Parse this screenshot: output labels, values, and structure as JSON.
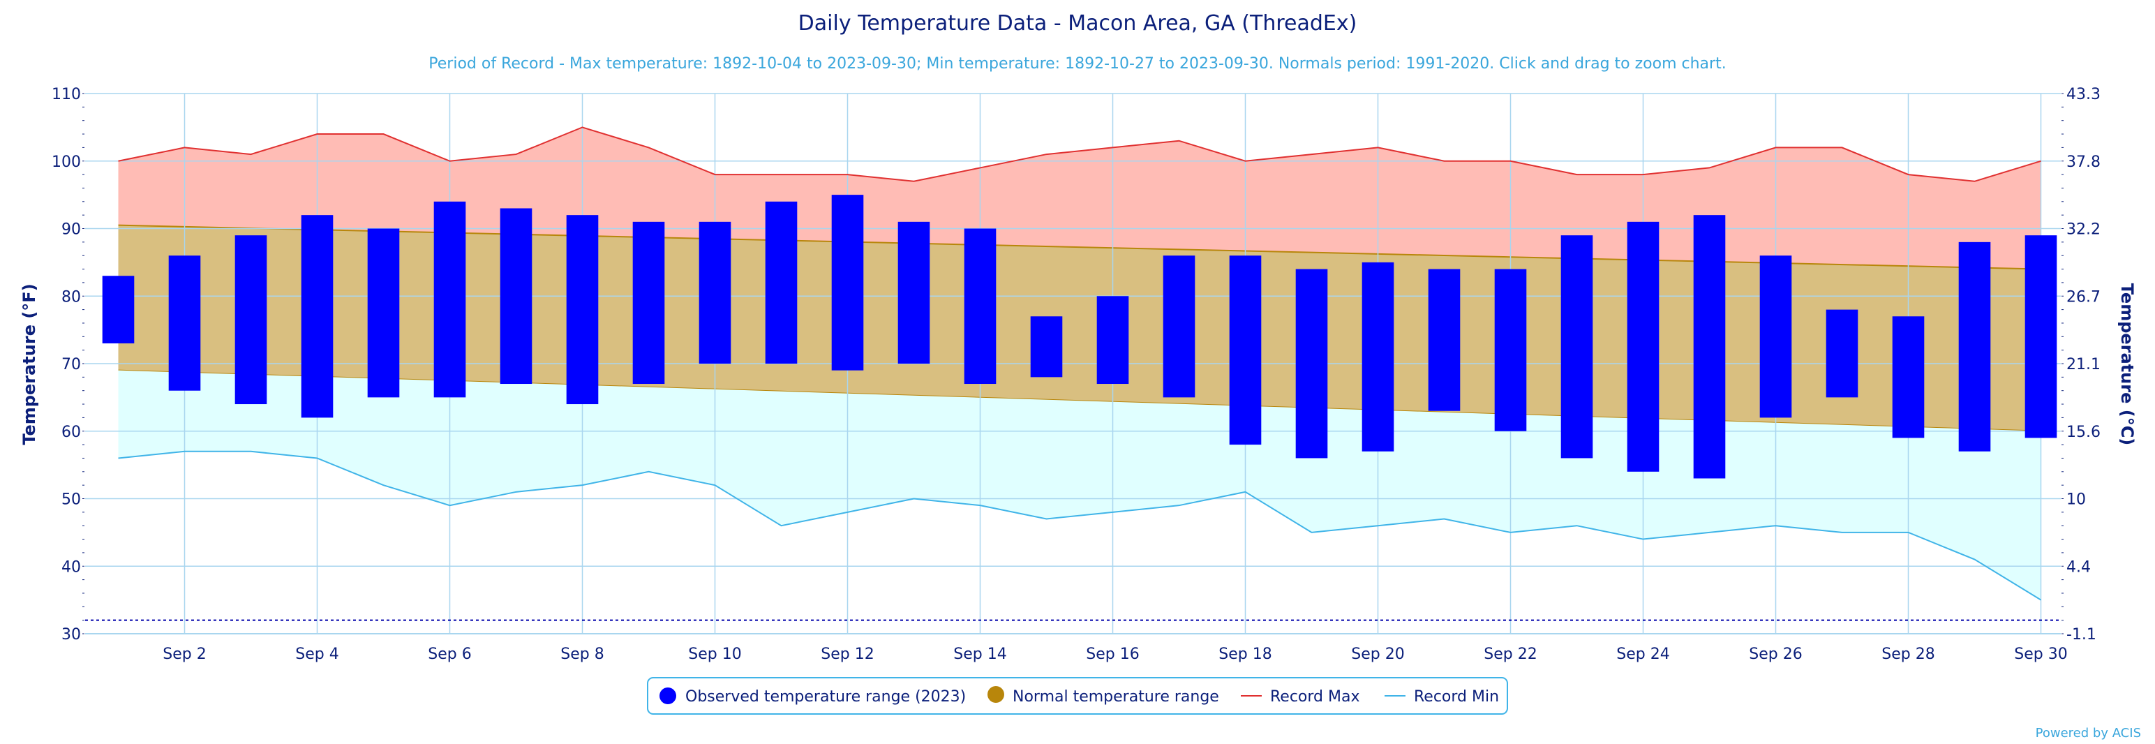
{
  "colors": {
    "observed": "#0000ff",
    "normal_fill": "#d9bf80",
    "normal_edge": "#b8860b",
    "normal_marker": "#b8860b",
    "record_max": "#e03030",
    "record_max_fill": "#ffbcb5",
    "record_min": "#40b4e8",
    "record_min_fill": "#e0ffff",
    "grid": "#a9d6ef",
    "axis_text": "#0b1f7a",
    "subtitle": "#3aa6dc"
  },
  "chart_data": {
    "type": "bar",
    "title": "Daily Temperature Data - Macon Area, GA (ThreadEx)",
    "subtitle": "Period of Record - Max temperature: 1892-10-04 to 2023-09-30; Min temperature: 1892-10-27 to 2023-09-30. Normals period: 1991-2020. Click and drag to zoom chart.",
    "ylabel_left": "Temperature (°F)",
    "ylabel_right": "Temperature (°C)",
    "ylim": [
      30,
      110
    ],
    "yticks_left": [
      "30",
      "40",
      "50",
      "60",
      "70",
      "80",
      "90",
      "100",
      "110"
    ],
    "yticks_right": [
      "-1.1",
      "4.4",
      "10",
      "15.6",
      "21.1",
      "26.7",
      "32.2",
      "37.8",
      "43.3"
    ],
    "xticks": [
      "Sep 2",
      "Sep 4",
      "Sep 6",
      "Sep 8",
      "Sep 10",
      "Sep 12",
      "Sep 14",
      "Sep 16",
      "Sep 18",
      "Sep 20",
      "Sep 22",
      "Sep 24",
      "Sep 26",
      "Sep 28",
      "Sep 30"
    ],
    "days": [
      1,
      2,
      3,
      4,
      5,
      6,
      7,
      8,
      9,
      10,
      11,
      12,
      13,
      14,
      15,
      16,
      17,
      18,
      19,
      20,
      21,
      22,
      23,
      24,
      25,
      26,
      27,
      28,
      29,
      30
    ],
    "observed_2023": {
      "name": "Observed temperature range (2023)",
      "low": [
        73,
        66,
        64,
        62,
        65,
        65,
        67,
        64,
        67,
        70,
        70,
        69,
        70,
        67,
        68,
        67,
        65,
        58,
        56,
        57,
        63,
        60,
        56,
        54,
        53,
        62,
        65,
        59,
        57,
        59
      ],
      "high": [
        83,
        86,
        89,
        92,
        90,
        94,
        93,
        92,
        91,
        91,
        94,
        95,
        91,
        90,
        77,
        80,
        86,
        86,
        84,
        85,
        84,
        84,
        89,
        91,
        92,
        86,
        78,
        77,
        88,
        89
      ]
    },
    "normal": {
      "name": "Normal temperature range",
      "high_start": 90.5,
      "high_end": 84,
      "low_start": 69,
      "low_end": 60
    },
    "record_max": {
      "name": "Record Max",
      "values": [
        100,
        102,
        101,
        104,
        104,
        100,
        101,
        105,
        102,
        98,
        98,
        98,
        97,
        99,
        101,
        102,
        103,
        100,
        101,
        102,
        100,
        100,
        98,
        98,
        99,
        102,
        102,
        98,
        97,
        100
      ]
    },
    "record_min": {
      "name": "Record Min",
      "values": [
        56,
        57,
        57,
        56,
        52,
        49,
        51,
        52,
        54,
        52,
        46,
        48,
        50,
        49,
        47,
        48,
        49,
        51,
        45,
        46,
        47,
        45,
        46,
        44,
        45,
        46,
        45,
        45,
        41,
        35
      ]
    },
    "reference_line": 32,
    "legend_position": "bottom-center"
  },
  "credits": "Powered by ACIS"
}
